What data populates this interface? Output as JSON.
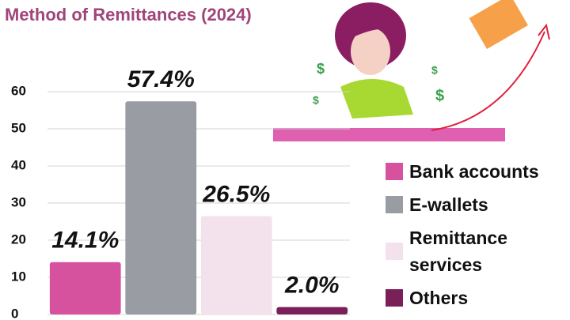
{
  "chart_data": {
    "type": "bar",
    "title": "Method of Remittances (2024)",
    "categories": [
      "Bank accounts",
      "E-wallets",
      "Remittance services",
      "Others"
    ],
    "values": [
      14.1,
      57.4,
      26.5,
      2.0
    ],
    "value_labels": [
      "14.1%",
      "57.4%",
      "26.5%",
      "2.0%"
    ],
    "colors": [
      "#d6529f",
      "#9a9ca3",
      "#f3e2ec",
      "#7a1f57"
    ],
    "ylim": [
      0,
      60
    ],
    "yticks": [
      0,
      10,
      20,
      30,
      40,
      50,
      60
    ],
    "grid": true
  }
}
